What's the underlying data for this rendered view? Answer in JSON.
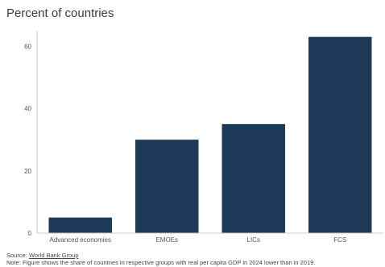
{
  "chart_data": {
    "type": "bar",
    "title": "Percent of countries",
    "categories": [
      "Advanced economies",
      "EMOEs",
      "LICs",
      "FCS"
    ],
    "values": [
      5,
      30,
      35,
      63
    ],
    "yticks": [
      0,
      20,
      40,
      60
    ],
    "ylim": [
      0,
      65
    ],
    "xlabel": "",
    "ylabel": "",
    "grid": false,
    "bar_color": "#1d3a58"
  },
  "footer": {
    "source_prefix": "Source: ",
    "source_link": "World Bank Group",
    "note": "Note: Figure shows the share of countries in respective groups with real per capita GDP in 2024 lower than in 2019."
  }
}
